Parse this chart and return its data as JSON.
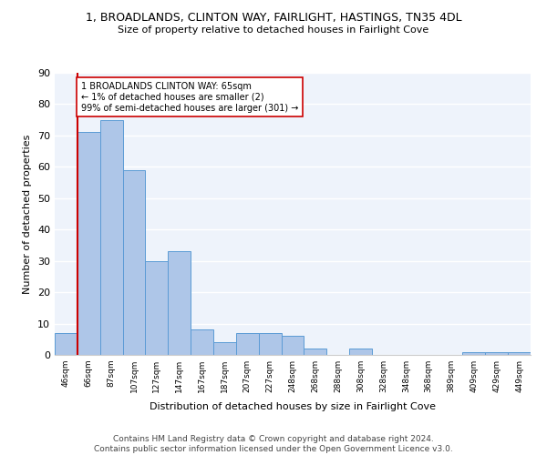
{
  "title": "1, BROADLANDS, CLINTON WAY, FAIRLIGHT, HASTINGS, TN35 4DL",
  "subtitle": "Size of property relative to detached houses in Fairlight Cove",
  "xlabel": "Distribution of detached houses by size in Fairlight Cove",
  "ylabel": "Number of detached properties",
  "footer_line1": "Contains HM Land Registry data © Crown copyright and database right 2024.",
  "footer_line2": "Contains public sector information licensed under the Open Government Licence v3.0.",
  "annotation_line1": "1 BROADLANDS CLINTON WAY: 65sqm",
  "annotation_line2": "← 1% of detached houses are smaller (2)",
  "annotation_line3": "99% of semi-detached houses are larger (301) →",
  "bar_categories": [
    "46sqm",
    "66sqm",
    "87sqm",
    "107sqm",
    "127sqm",
    "147sqm",
    "167sqm",
    "187sqm",
    "207sqm",
    "227sqm",
    "248sqm",
    "268sqm",
    "288sqm",
    "308sqm",
    "328sqm",
    "348sqm",
    "368sqm",
    "389sqm",
    "409sqm",
    "429sqm",
    "449sqm"
  ],
  "bar_values": [
    7,
    71,
    75,
    59,
    30,
    33,
    8,
    4,
    7,
    7,
    6,
    2,
    0,
    2,
    0,
    0,
    0,
    0,
    1,
    1,
    1
  ],
  "bar_color": "#aec6e8",
  "bar_edge_color": "#5b9bd5",
  "bg_color": "#eef3fb",
  "grid_color": "#ffffff",
  "marker_color": "#cc0000",
  "ylim": [
    0,
    90
  ],
  "yticks": [
    0,
    10,
    20,
    30,
    40,
    50,
    60,
    70,
    80,
    90
  ]
}
